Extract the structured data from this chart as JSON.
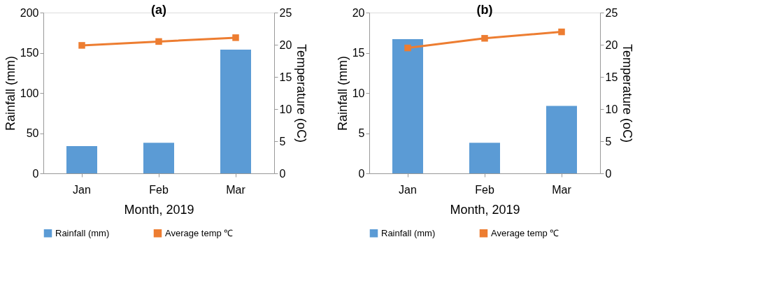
{
  "chart_data": [
    {
      "type": "bar",
      "title": "(a)",
      "xlabel": "Month, 2019",
      "ylabel": "Rainfall (mm)",
      "y2label": "Temperature (oC)",
      "categories": [
        "Jan",
        "Feb",
        "Mar"
      ],
      "series": [
        {
          "name": "Rainfall (mm)",
          "color": "#5b9bd5",
          "values": [
            34,
            38,
            154
          ]
        },
        {
          "name": "Average temp  ℃",
          "type": "line",
          "axis": "y2",
          "color": "#ed7d31",
          "values": [
            19.9,
            20.5,
            21.1
          ]
        }
      ],
      "ylim": [
        0,
        200
      ],
      "yticks": [
        0,
        50,
        100,
        150,
        200
      ],
      "y2lim": [
        0,
        25
      ],
      "y2ticks": [
        0,
        5,
        10,
        15,
        20,
        25
      ],
      "marker": "square",
      "grid": false,
      "legend": "bottom"
    },
    {
      "type": "bar",
      "title": "(b)",
      "xlabel": "Month, 2019",
      "ylabel": "Rainfall (mm)",
      "y2label": "Temperature (oC)",
      "categories": [
        "Jan",
        "Feb",
        "Mar"
      ],
      "series": [
        {
          "name": "Rainfall (mm)",
          "color": "#5b9bd5",
          "values": [
            16.7,
            3.8,
            8.4
          ]
        },
        {
          "name": "Average temp  ℃",
          "type": "line",
          "axis": "y2",
          "color": "#ed7d31",
          "values": [
            19.5,
            21.0,
            22.0
          ]
        }
      ],
      "ylim": [
        0,
        20
      ],
      "yticks": [
        0,
        5,
        10,
        15,
        20
      ],
      "y2lim": [
        0,
        25
      ],
      "y2ticks": [
        0,
        5,
        10,
        15,
        20,
        25
      ],
      "marker": "square",
      "grid": false,
      "legend": "bottom"
    }
  ]
}
